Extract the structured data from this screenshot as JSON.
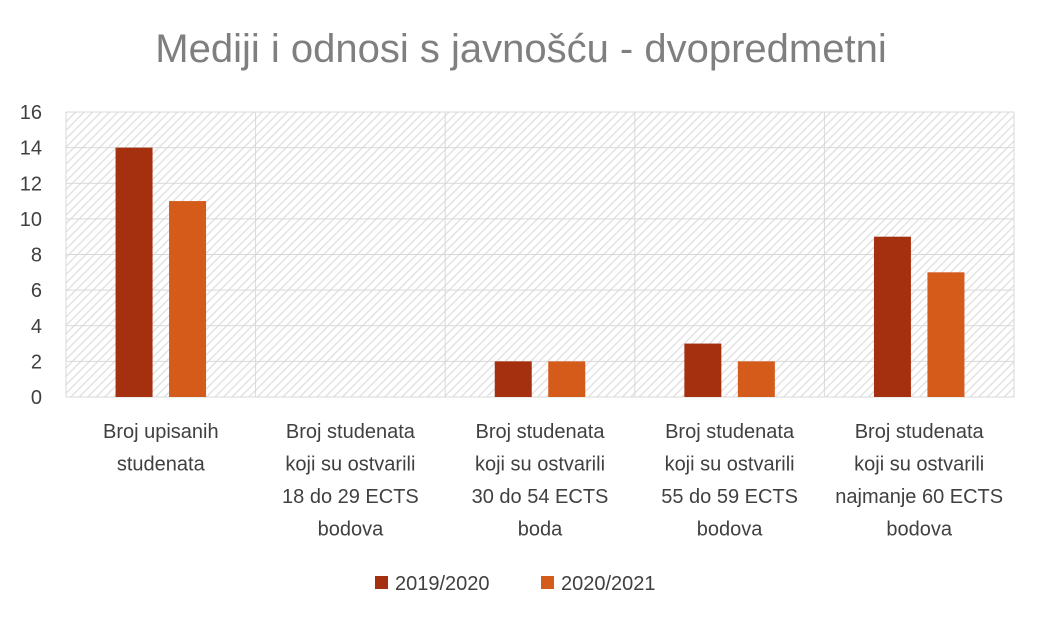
{
  "chart_data": {
    "type": "bar",
    "title": "Mediji i odnosi s javnošću - dvopredmetni",
    "xlabel": "",
    "ylabel": "",
    "ylim": [
      0,
      16
    ],
    "yticks": [
      0,
      2,
      4,
      6,
      8,
      10,
      12,
      14,
      16
    ],
    "grid": true,
    "legend_position": "bottom",
    "categories": [
      [
        "Broj upisanih",
        "studenata"
      ],
      [
        "Broj studenata",
        "koji su ostvarili",
        "18 do 29 ECTS",
        "bodova"
      ],
      [
        "Broj studenata",
        "koji su ostvarili",
        "30 do 54 ECTS",
        "boda"
      ],
      [
        "Broj studenata",
        "koji su ostvarili",
        "55 do 59 ECTS",
        "bodova"
      ],
      [
        "Broj studenata",
        "koji su ostvarili",
        "najmanje 60 ECTS",
        "bodova"
      ]
    ],
    "series": [
      {
        "name": "2019/2020",
        "color": "#a5300f",
        "values": [
          14,
          0,
          2,
          3,
          9
        ]
      },
      {
        "name": "2020/2021",
        "color": "#d55b1b",
        "values": [
          11,
          0,
          2,
          2,
          7
        ]
      }
    ]
  },
  "colors": {
    "plot_background_hatch": "#e3e3e3",
    "gridline": "#d9d9d9",
    "text": "#404040",
    "title": "#7f7f7f"
  }
}
